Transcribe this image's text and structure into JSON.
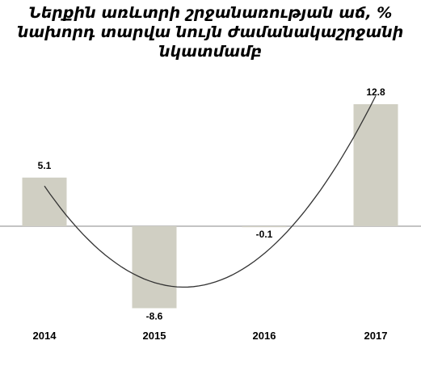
{
  "chart_data": {
    "type": "bar",
    "title_lines": [
      "Ներքին առևտրի շրջանառության աճ, %",
      "նախորդ տարվա նույն ժամանակաշրջանի",
      "նկատմամբ"
    ],
    "categories": [
      "2014",
      "2015",
      "2016",
      "2017"
    ],
    "values": [
      5.1,
      -8.6,
      -0.1,
      12.8
    ],
    "value_labels": [
      "5.1",
      "-8.6",
      "-0.1",
      "12.8"
    ],
    "ylim": [
      -8.6,
      12.8
    ],
    "grid": false,
    "legend": "none",
    "trendline": "polynomial",
    "colors": {
      "bar": "#d0cfc3",
      "axis": "#888888",
      "trend": "#333333"
    }
  }
}
